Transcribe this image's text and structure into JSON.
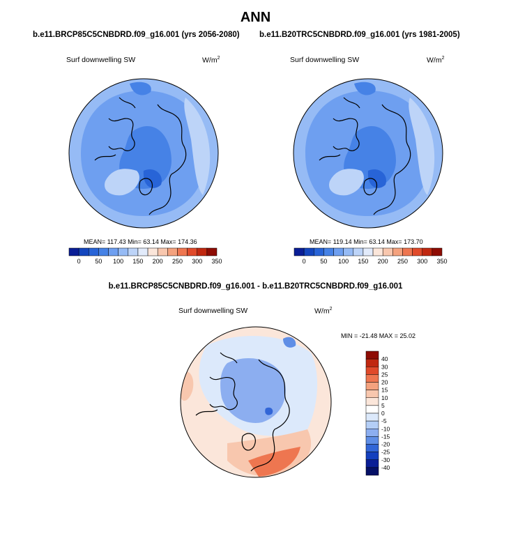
{
  "title": "ANN",
  "left_panel": {
    "case_title": "b.e11.BRCP85C5CNBDRD.f09_g16.001 (yrs 2056-2080)",
    "variable": "Surf downwelling SW",
    "units": "W/m",
    "units_sup": "2",
    "stats": "MEAN= 117.43  Min=  63.14  Max= 174.36"
  },
  "right_panel": {
    "case_title": "b.e11.B20TRC5CNBDRD.f09_g16.001 (yrs 1981-2005)",
    "variable": "Surf downwelling SW",
    "units": "W/m",
    "units_sup": "2",
    "stats": "MEAN= 119.14  Min=  63.14  Max= 173.70"
  },
  "diff_panel": {
    "title": "b.e11.BRCP85C5CNBDRD.f09_g16.001 - b.e11.B20TRC5CNBDRD.f09_g16.001",
    "variable": "Surf downwelling SW",
    "units": "W/m",
    "units_sup": "2",
    "stats": "MIN = -21.48 MAX =  25.02"
  },
  "chart_data": [
    {
      "type": "map",
      "name": "left",
      "projection": "north-polar-stereographic",
      "colorbar": {
        "orientation": "horizontal",
        "tick_labels": [
          "0",
          "50",
          "100",
          "150",
          "200",
          "250",
          "300",
          "350"
        ],
        "colors": [
          "#0a1e96",
          "#1446be",
          "#2864d7",
          "#4682e6",
          "#6e9ff0",
          "#96bbf5",
          "#bdd4f8",
          "#e2ebfb",
          "#fbe6da",
          "#f8c7ae",
          "#f4a27e",
          "#ee7650",
          "#e04a2a",
          "#c02810",
          "#8e0c04"
        ]
      }
    },
    {
      "type": "map",
      "name": "right",
      "projection": "north-polar-stereographic",
      "colorbar": {
        "orientation": "horizontal",
        "tick_labels": [
          "0",
          "50",
          "100",
          "150",
          "200",
          "250",
          "300",
          "350"
        ],
        "colors": [
          "#0a1e96",
          "#1446be",
          "#2864d7",
          "#4682e6",
          "#6e9ff0",
          "#96bbf5",
          "#bdd4f8",
          "#e2ebfb",
          "#fbe6da",
          "#f8c7ae",
          "#f4a27e",
          "#ee7650",
          "#e04a2a",
          "#c02810",
          "#8e0c04"
        ]
      }
    },
    {
      "type": "map",
      "name": "difference",
      "projection": "north-polar-stereographic",
      "colorbar": {
        "orientation": "vertical",
        "tick_labels": [
          "40",
          "30",
          "25",
          "20",
          "15",
          "10",
          "5",
          "0",
          "-5",
          "-10",
          "-15",
          "-20",
          "-25",
          "-30",
          "-40"
        ],
        "colors": [
          "#8e0c04",
          "#c02810",
          "#e04a2a",
          "#ee7650",
          "#f4a27e",
          "#f8c7ae",
          "#fbe6da",
          "#ffffff",
          "#dce9fb",
          "#b4cef6",
          "#8caef0",
          "#5f8ee6",
          "#3266d7",
          "#1440be",
          "#0a1e96",
          "#051066"
        ]
      }
    }
  ]
}
